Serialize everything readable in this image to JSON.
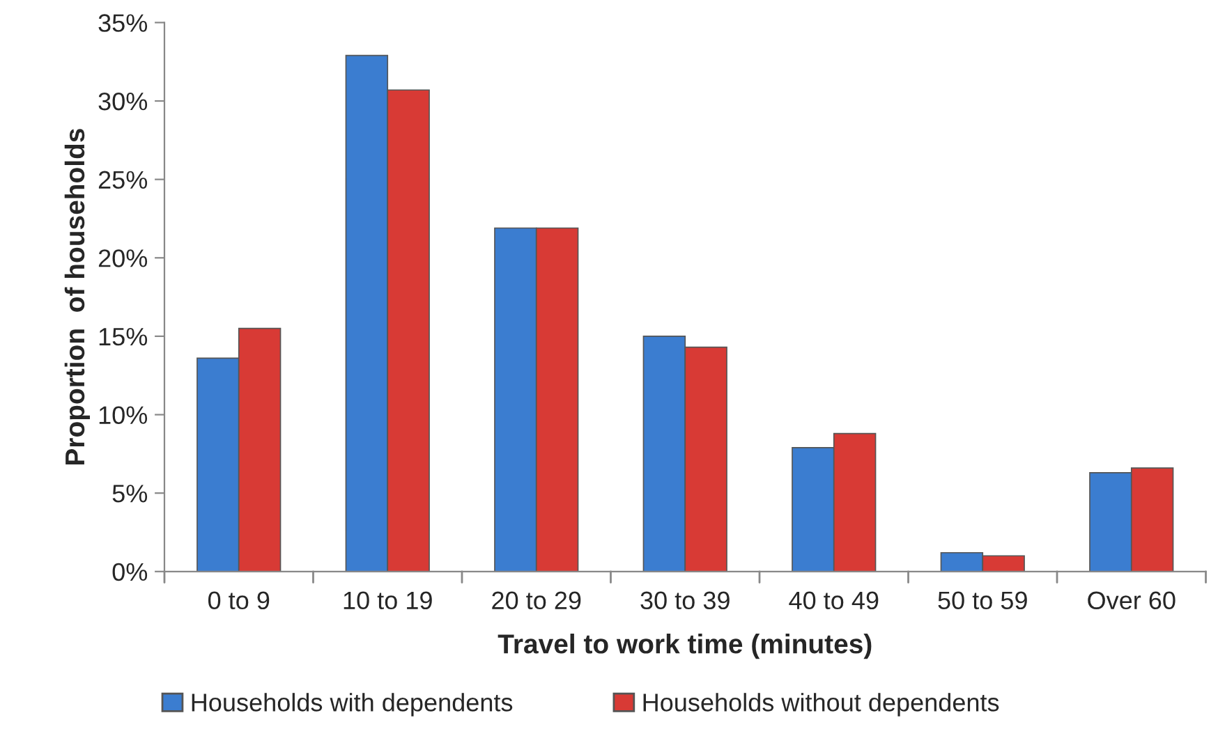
{
  "chart_data": {
    "type": "bar",
    "xlabel": "Travel to work time (minutes)",
    "ylabel": "Proportion  of households",
    "categories": [
      "0 to 9",
      "10 to 19",
      "20 to 29",
      "30 to 39",
      "40 to 49",
      "50 to 59",
      "Over 60"
    ],
    "series": [
      {
        "name": "Households with dependents",
        "color": "#3b7dd0",
        "values": [
          13.6,
          32.9,
          21.9,
          15.0,
          7.9,
          1.2,
          6.3
        ]
      },
      {
        "name": "Households without dependents",
        "color": "#d83a35",
        "values": [
          15.5,
          30.7,
          21.9,
          14.3,
          8.8,
          1.0,
          6.6
        ]
      }
    ],
    "ylim": [
      0,
      35
    ],
    "yticks": [
      {
        "value": 0,
        "label": "0%"
      },
      {
        "value": 5,
        "label": "5%"
      },
      {
        "value": 10,
        "label": "10%"
      },
      {
        "value": 15,
        "label": "15%"
      },
      {
        "value": 20,
        "label": "20%"
      },
      {
        "value": 25,
        "label": "25%"
      },
      {
        "value": 30,
        "label": "30%"
      },
      {
        "value": 35,
        "label": "35%"
      }
    ],
    "grid": false,
    "legend": "bottom"
  }
}
